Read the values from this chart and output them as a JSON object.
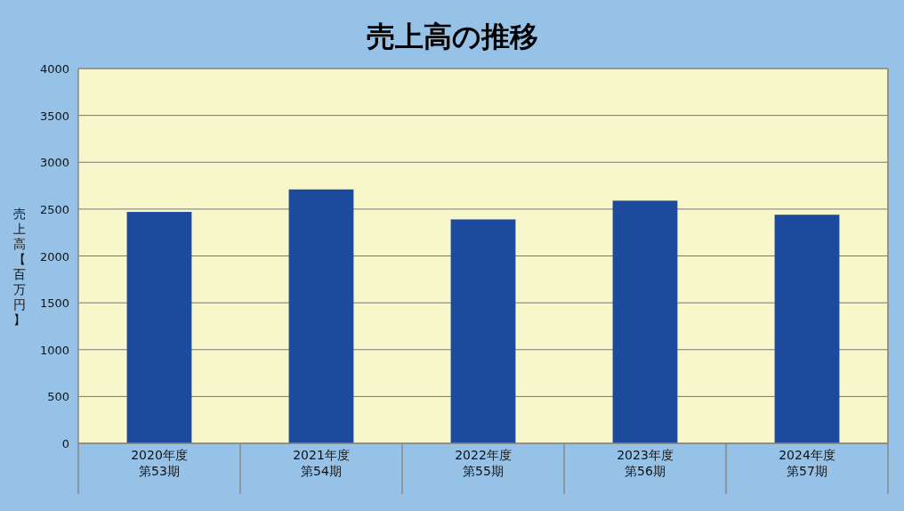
{
  "chart_data": {
    "type": "bar",
    "title": "売上高の推移",
    "ylabel": "売上高【百万円】",
    "categories": [
      "2020年度第53期",
      "2021年度第54期",
      "2022年度第55期",
      "2023年度第56期",
      "2024年度第57期"
    ],
    "values": [
      2470,
      2710,
      2390,
      2590,
      2440
    ],
    "color": "#1c4a9c",
    "ylim": [
      0,
      4000
    ],
    "yticks": [
      0,
      500,
      1000,
      1500,
      2000,
      2500,
      3000,
      3500,
      4000
    ],
    "grid": "y"
  }
}
